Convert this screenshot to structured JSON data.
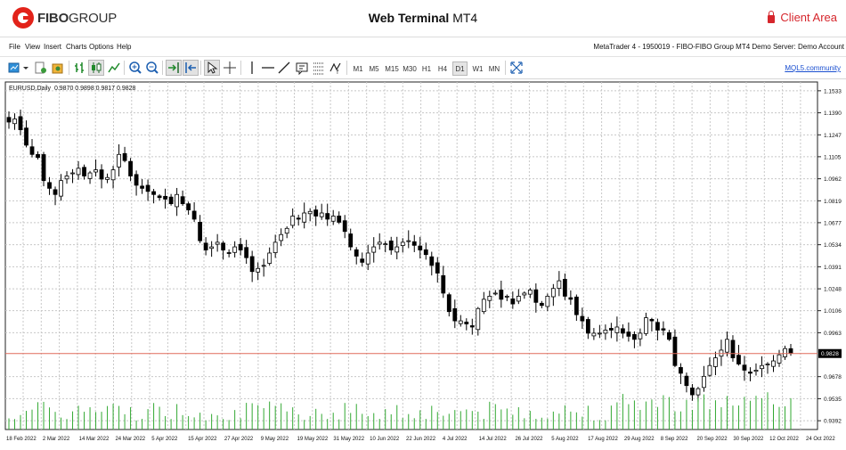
{
  "header": {
    "logo_bold": "FIBO",
    "logo_rest": "GROUP",
    "title_bold": "Web Terminal",
    "title_rest": " MT4",
    "client_area": "Client Area"
  },
  "menu": {
    "items": [
      "File",
      "View",
      "Insert",
      "Charts",
      "Options",
      "Help"
    ],
    "account_info": "MetaTrader 4 - 1950019 - FIBO-FIBO Group MT4 Demo Server: Demo Account"
  },
  "toolbar": {
    "timeframes": [
      "M1",
      "M5",
      "M15",
      "M30",
      "H1",
      "H4",
      "D1",
      "W1",
      "MN"
    ],
    "active_timeframe": "D1",
    "mql_link": "MQL5.community"
  },
  "chart_data": {
    "type": "candlestick",
    "symbol_label": "EURUSD,Daily",
    "ohlc_label": "0.9870 0.9898 0.9817 0.9828",
    "current_price": 0.9828,
    "current_price_label": "0.9828",
    "y_ticks": [
      "1.1533",
      "1.1390",
      "1.1247",
      "1.1105",
      "1.0962",
      "1.0819",
      "1.0677",
      "1.0534",
      "1.0391",
      "1.0248",
      "1.0106",
      "0.9963",
      "0.9678",
      "0.9535",
      "0.9392"
    ],
    "y_range": [
      0.9335,
      1.159
    ],
    "x_ticks": [
      "18 Feb 2022",
      "2 Mar 2022",
      "14 Mar 2022",
      "24 Mar 2022",
      "5 Apr 2022",
      "15 Apr 2022",
      "27 Apr 2022",
      "9 May 2022",
      "19 May 2022",
      "31 May 2022",
      "10 Jun 2022",
      "22 Jun 2022",
      "4 Jul 2022",
      "14 Jul 2022",
      "26 Jul 2022",
      "5 Aug 2022",
      "17 Aug 2022",
      "29 Aug 2022",
      "8 Sep 2022",
      "20 Sep 2022",
      "30 Sep 2022",
      "12 Oct 2022",
      "24 Oct 2022"
    ],
    "close_path": [
      1.133,
      1.135,
      1.128,
      1.118,
      1.112,
      1.11,
      1.095,
      1.09,
      1.086,
      1.095,
      1.098,
      1.1,
      1.103,
      1.098,
      1.1,
      1.102,
      1.096,
      1.097,
      1.102,
      1.112,
      1.108,
      1.098,
      1.092,
      1.09,
      1.088,
      1.086,
      1.084,
      1.083,
      1.08,
      1.086,
      1.08,
      1.076,
      1.07,
      1.056,
      1.05,
      1.052,
      1.055,
      1.05,
      1.048,
      1.052,
      1.05,
      1.045,
      1.036,
      1.038,
      1.04,
      1.048,
      1.055,
      1.06,
      1.064,
      1.072,
      1.07,
      1.074,
      1.075,
      1.072,
      1.074,
      1.07,
      1.072,
      1.068,
      1.062,
      1.052,
      1.046,
      1.042,
      1.048,
      1.052,
      1.055,
      1.054,
      1.05,
      1.052,
      1.055,
      1.056,
      1.053,
      1.05,
      1.047,
      1.04,
      1.035,
      1.022,
      1.01,
      1.004,
      1.004,
      1.002,
      1.0,
      1.012,
      1.018,
      1.02,
      1.022,
      1.018,
      1.02,
      1.015,
      1.02,
      1.022,
      1.024,
      1.016,
      1.014,
      1.02,
      1.025,
      1.03,
      1.02,
      1.018,
      1.008,
      1.004,
      0.996,
      0.996,
      0.996,
      0.998,
      0.998,
      1.0,
      0.996,
      0.994,
      0.992,
      0.996,
      1.006,
      1.004,
      0.998,
      0.998,
      0.992,
      0.975,
      0.97,
      0.962,
      0.956,
      0.96,
      0.968,
      0.975,
      0.98,
      0.985,
      0.992,
      0.98,
      0.976,
      0.972,
      0.97,
      0.972,
      0.975,
      0.976,
      0.978,
      0.982,
      0.986,
      0.983
    ],
    "grid": true
  }
}
